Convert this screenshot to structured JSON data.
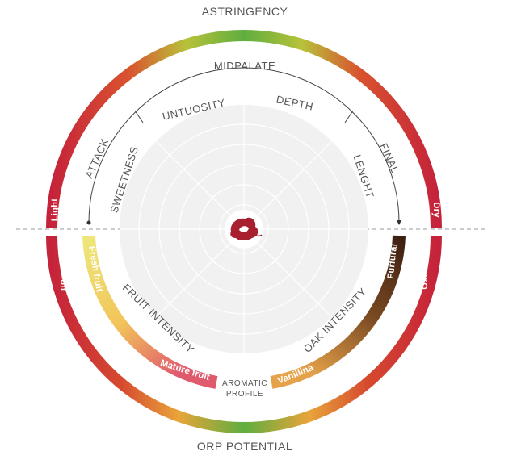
{
  "labels": {
    "top": "ASTRINGENCY",
    "bottom": "ORP POTENTIAL",
    "midpalate": "MIDPALATE",
    "attack": "ATTACK",
    "final": "FINAL",
    "untuosity": "UNTUOSITY",
    "depth": "DEPTH",
    "sweetness": "SWEETNESS",
    "lenght": "LENGHT",
    "fruit_intensity": "FRUIT INTENSITY",
    "oak_intensity": "OAK INTENSITY",
    "aromatic_1": "AROMATIC",
    "aromatic_2": "PROFILE"
  },
  "ring_labels": {
    "light": "Light",
    "dry": "Dry",
    "reduction": "Reduction",
    "oxidation": "Oxidation",
    "fresh_fruit": "Fresh fruit",
    "mature_fruit": "Mature fruit",
    "furfural": "Furfural",
    "vanillina": "Vanillina"
  },
  "colors": {
    "red": "#c5233a",
    "green": "#5fae3f",
    "yellow_green": "#b9c43a",
    "orange": "#e89a3a",
    "brown_dark": "#3d1f12",
    "brown_light": "#e6a24a",
    "fresh_yellow": "#eee77a",
    "mature_pink": "#e05a6e",
    "disc": "#f1f1f1"
  },
  "icons": {
    "center": "wine-stain-logo-icon"
  }
}
